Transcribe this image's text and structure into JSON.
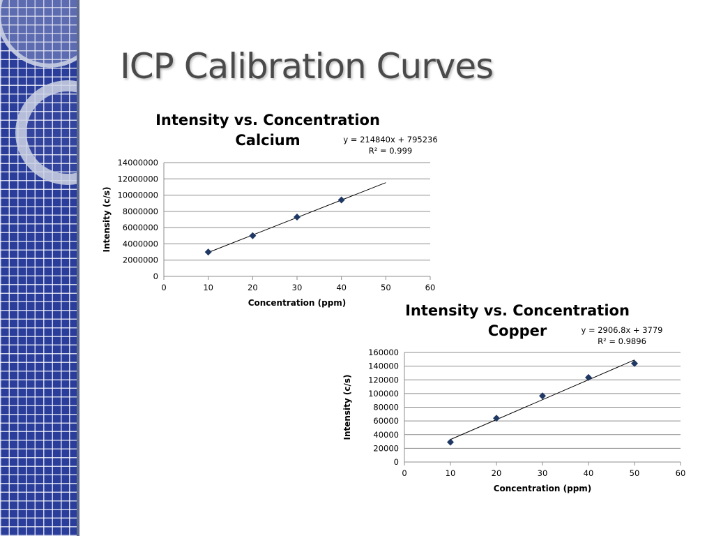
{
  "slide": {
    "title": "ICP Calibration Curves"
  },
  "chart_data": [
    {
      "type": "scatter",
      "title_lines": [
        "Intensity vs. Concentration",
        "Calcium"
      ],
      "xlabel": "Concentration (ppm)",
      "ylabel": "Intensity (c/s)",
      "xlim": [
        0,
        60
      ],
      "ylim": [
        0,
        14000000
      ],
      "x_ticks": [
        "0",
        "10",
        "20",
        "30",
        "40",
        "50",
        "60"
      ],
      "y_ticks": [
        "0",
        "2000000",
        "4000000",
        "6000000",
        "8000000",
        "10000000",
        "12000000",
        "14000000"
      ],
      "grid": "horizontal",
      "series": [
        {
          "x": [
            10,
            20,
            30,
            40
          ],
          "y": [
            3000000,
            5000000,
            7300000,
            9400000
          ],
          "marker": "diamond",
          "color": "#1f3864"
        }
      ],
      "trendline": {
        "type": "linear",
        "slope": 214840,
        "intercept": 795236,
        "x_range": [
          10,
          50
        ]
      },
      "equation_lines": [
        "y = 214840x + 795236",
        "R² = 0.999"
      ]
    },
    {
      "type": "scatter",
      "title_lines": [
        "Intensity vs. Concentration",
        "Copper"
      ],
      "xlabel": "Concentration (ppm)",
      "ylabel": "Intensity (c/s)",
      "xlim": [
        0,
        60
      ],
      "ylim": [
        0,
        160000
      ],
      "x_ticks": [
        "0",
        "10",
        "20",
        "30",
        "40",
        "50",
        "60"
      ],
      "y_ticks": [
        "0",
        "20000",
        "40000",
        "60000",
        "80000",
        "100000",
        "120000",
        "140000",
        "160000"
      ],
      "grid": "horizontal",
      "series": [
        {
          "x": [
            10,
            20,
            30,
            40,
            50
          ],
          "y": [
            29000,
            64000,
            96500,
            123500,
            144000
          ],
          "marker": "diamond",
          "color": "#1f3864"
        }
      ],
      "trendline": {
        "type": "linear",
        "slope": 2906.8,
        "intercept": 3779,
        "x_range": [
          10,
          50
        ]
      },
      "equation_lines": [
        "y = 2906.8x + 3779",
        "R² = 0.9896"
      ]
    }
  ]
}
